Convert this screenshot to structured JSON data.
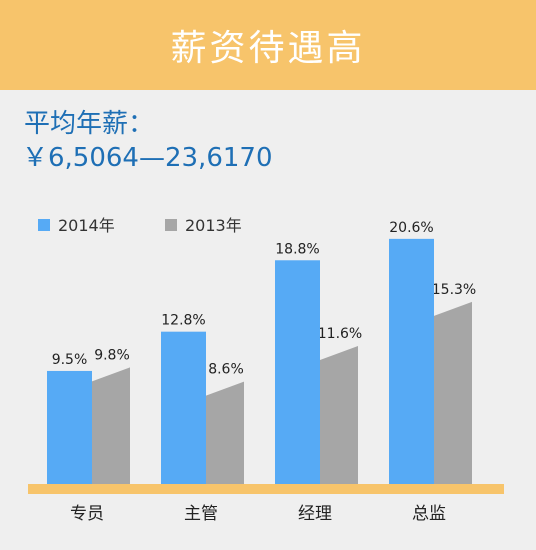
{
  "banner": {
    "title": "薪资待遇高"
  },
  "salary": {
    "label": "平均年薪：",
    "range": "￥6,5064—23,6170"
  },
  "chart_data": {
    "type": "bar",
    "categories": [
      "专员",
      "主管",
      "经理",
      "总监"
    ],
    "series": [
      {
        "name": "2014年",
        "values": [
          9.5,
          12.8,
          18.8,
          20.6
        ],
        "labels": [
          "9.5%",
          "12.8%",
          "18.8%",
          "20.6%"
        ],
        "color": "#56aaf5"
      },
      {
        "name": "2013年",
        "values": [
          9.8,
          8.6,
          11.6,
          15.3
        ],
        "labels": [
          "9.8%",
          "8.6%",
          "11.6%",
          "15.3%"
        ],
        "color": "#a6a6a6"
      }
    ],
    "title": "",
    "xlabel": "",
    "ylabel": "",
    "ylim": [
      0,
      22
    ],
    "grid": false,
    "legend": "top-left",
    "axis_color": "#f7c46b"
  }
}
